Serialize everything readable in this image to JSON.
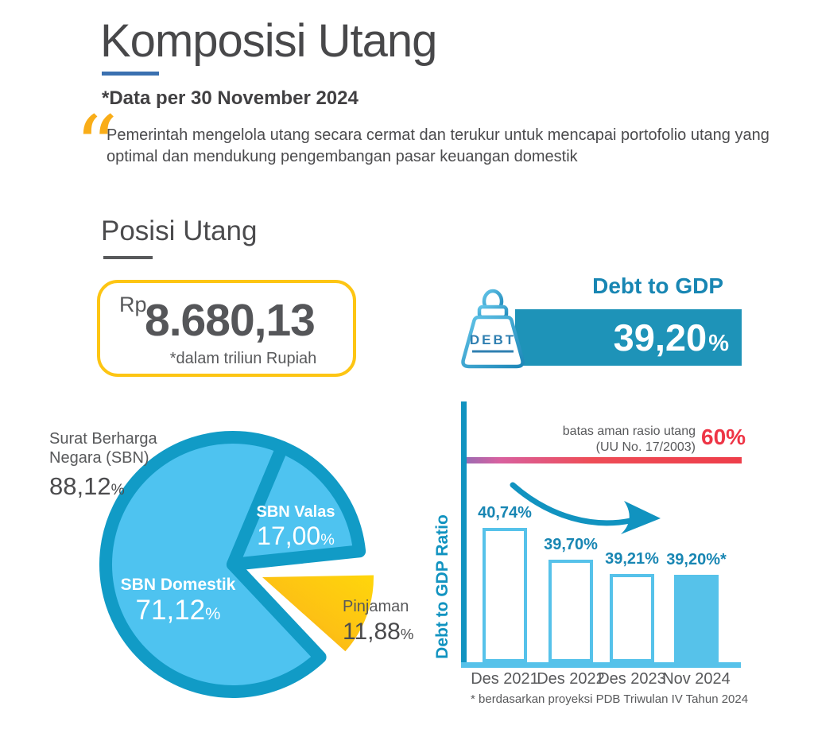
{
  "symbols": {
    "percent": "%"
  },
  "header": {
    "title": "Komposisi Utang",
    "subtitle": "*Data per 30 November 2024",
    "quote": "Pemerintah mengelola utang secara cermat dan terukur untuk mencapai portofolio utang yang optimal dan mendukung pengembangan pasar keuangan domestik"
  },
  "posisi_utang": {
    "heading": "Posisi Utang",
    "currency": "Rp",
    "amount": "8.680,13",
    "unit_note": "*dalam triliun Rupiah"
  },
  "debt_to_gdp": {
    "heading": "Debt to GDP",
    "value": "39,20",
    "weight_icon_label": "DEBT"
  },
  "colors": {
    "accent_underline": "#3a70b0",
    "teal_band": "#1e93b8",
    "teal_dark": "#1193c0",
    "sky": "#56c2ea",
    "pie_fill": "#4ec3f0",
    "pie_ring": "#119bc6",
    "yellow": "#fdc513",
    "orange": "#f5a11d",
    "red": "#ee3e4a",
    "purple": "#9d6bb2",
    "text_dark": "#4a4a4c",
    "text_gray": "#58595b"
  },
  "chart_data": [
    {
      "type": "pie",
      "slices": [
        {
          "label": "SBN Domestik",
          "value": 71.12,
          "display": "71,12",
          "color": "#4ec3f0"
        },
        {
          "label": "SBN Valas",
          "value": 17.0,
          "display": "17,00",
          "color": "#4ec3f0"
        },
        {
          "label": "Pinjaman",
          "value": 11.88,
          "display": "11,88",
          "color": "#fdc513",
          "exploded": true
        }
      ],
      "ring_color": "#119bc6",
      "annotation": {
        "label": "Surat Berharga Negara (SBN)",
        "value": 88.12,
        "display": "88,12"
      },
      "legend_position": "none"
    },
    {
      "type": "bar",
      "categories": [
        "Des 2021",
        "Des 2022",
        "Des 2023",
        "Nov 2024"
      ],
      "values": [
        40.74,
        39.7,
        39.21,
        39.2
      ],
      "bar_labels": [
        "40,74%",
        "39,70%",
        "39,21%",
        "39,20%*"
      ],
      "ylabel": "Debt to GDP Ratio",
      "ylim": [
        36.3,
        42
      ],
      "highlight_index": 3,
      "threshold": {
        "value": 60,
        "display": "60%",
        "label_line1": "batas aman rasio utang",
        "label_line2": "(UU No. 17/2003)"
      },
      "footnote": "* berdasarkan proyeksi PDB Triwulan IV Tahun 2024"
    }
  ]
}
